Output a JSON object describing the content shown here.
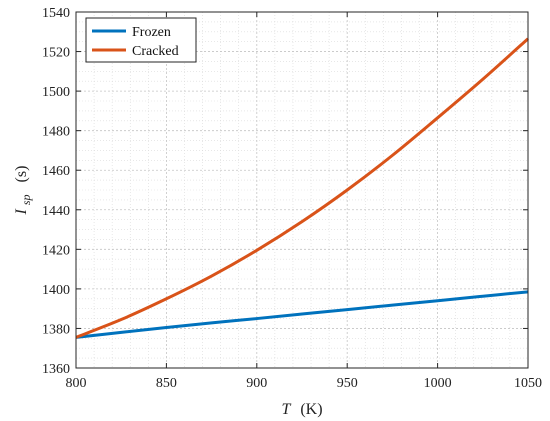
{
  "chart_data": {
    "type": "line",
    "xlabel": {
      "symbol": "T",
      "unit": "(K)"
    },
    "ylabel": {
      "symbol": "I",
      "subscript": "sp",
      "unit": "(s)"
    },
    "xlim": [
      800,
      1050
    ],
    "ylim": [
      1360,
      1540
    ],
    "xticks": [
      "800",
      "850",
      "900",
      "950",
      "1000",
      "1050"
    ],
    "yticks": [
      "1360",
      "1380",
      "1400",
      "1420",
      "1440",
      "1460",
      "1480",
      "1500",
      "1520",
      "1540"
    ],
    "grid": true,
    "minor_grid": true,
    "legend_position": "top-left",
    "x": [
      800,
      825,
      850,
      875,
      900,
      925,
      950,
      975,
      1000,
      1025,
      1050
    ],
    "series": [
      {
        "name": "Frozen",
        "color": "#0072BD",
        "values": [
          1375.5,
          1378,
          1380.5,
          1382.8,
          1385,
          1387.3,
          1389.5,
          1391.8,
          1394,
          1396.3,
          1398.5
        ]
      },
      {
        "name": "Cracked",
        "color": "#D95319",
        "values": [
          1375.5,
          1384.5,
          1395,
          1406.5,
          1419.5,
          1434,
          1450,
          1467.5,
          1486.5,
          1506,
          1526.5
        ]
      }
    ]
  }
}
